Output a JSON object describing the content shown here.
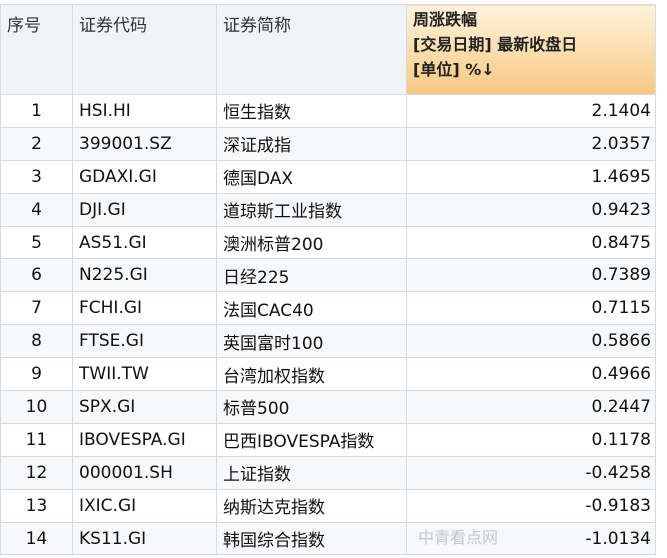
{
  "columns": {
    "seq": "序号",
    "code": "证券代码",
    "name": "证券简称",
    "change_l1": "周涨跌幅",
    "change_l2": "[交易日期] 最新收盘日",
    "change_l3": "[单位] %↓"
  },
  "rows": [
    {
      "seq": "1",
      "code": "HSI.HI",
      "name": "恒生指数",
      "change": "2.1404"
    },
    {
      "seq": "2",
      "code": "399001.SZ",
      "name": "深证成指",
      "change": "2.0357"
    },
    {
      "seq": "3",
      "code": "GDAXI.GI",
      "name": "德国DAX",
      "change": "1.4695"
    },
    {
      "seq": "4",
      "code": "DJI.GI",
      "name": "道琼斯工业指数",
      "change": "0.9423"
    },
    {
      "seq": "5",
      "code": "AS51.GI",
      "name": "澳洲标普200",
      "change": "0.8475"
    },
    {
      "seq": "6",
      "code": "N225.GI",
      "name": "日经225",
      "change": "0.7389"
    },
    {
      "seq": "7",
      "code": "FCHI.GI",
      "name": "法国CAC40",
      "change": "0.7115"
    },
    {
      "seq": "8",
      "code": "FTSE.GI",
      "name": "英国富时100",
      "change": "0.5866"
    },
    {
      "seq": "9",
      "code": "TWII.TW",
      "name": "台湾加权指数",
      "change": "0.4966"
    },
    {
      "seq": "10",
      "code": "SPX.GI",
      "name": "标普500",
      "change": "0.2447"
    },
    {
      "seq": "11",
      "code": "IBOVESPA.GI",
      "name": "巴西IBOVESPA指数",
      "change": "0.1178"
    },
    {
      "seq": "12",
      "code": "000001.SH",
      "name": "上证指数",
      "change": "-0.4258"
    },
    {
      "seq": "13",
      "code": "IXIC.GI",
      "name": "纳斯达克指数",
      "change": "-0.9183"
    },
    {
      "seq": "14",
      "code": "KS11.GI",
      "name": "韩国综合指数",
      "change": "-1.0134"
    }
  ],
  "watermark": "中青看点网"
}
